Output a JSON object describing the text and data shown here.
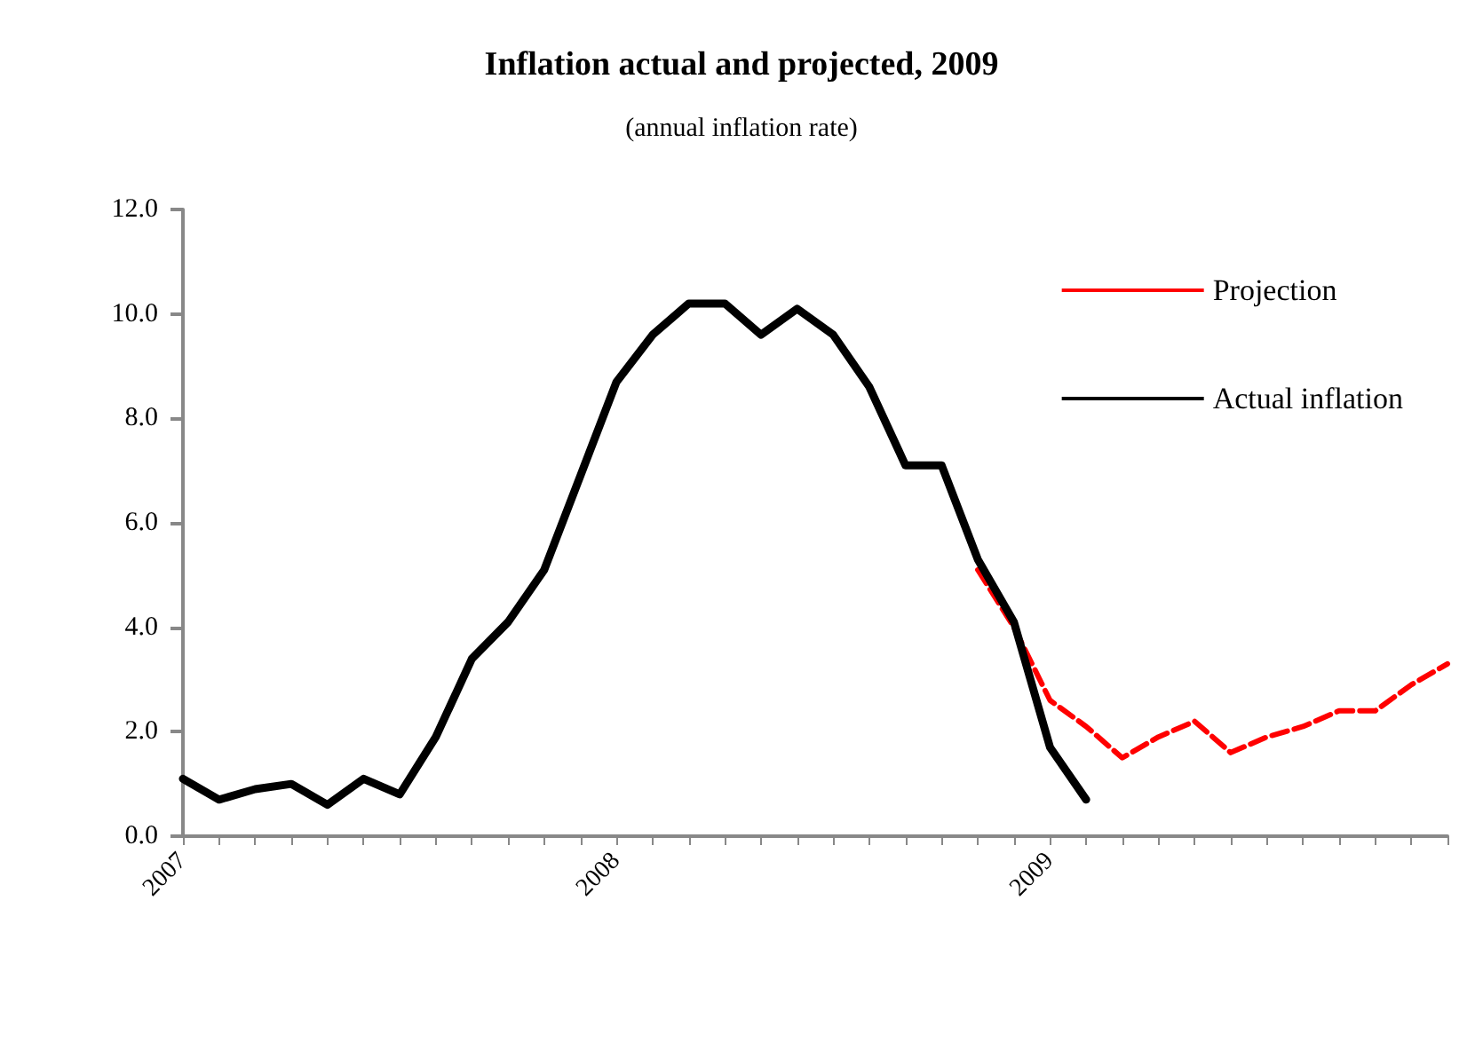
{
  "chart_data": {
    "type": "line",
    "title": "Inflation actual and projected, 2009",
    "subtitle": "(annual inflation rate)",
    "categories": [
      "2007",
      null,
      null,
      null,
      null,
      null,
      null,
      null,
      null,
      null,
      null,
      null,
      "2008",
      null,
      null,
      null,
      null,
      null,
      null,
      null,
      null,
      null,
      null,
      null,
      "2009",
      null,
      null,
      null,
      null,
      null,
      null,
      null,
      null,
      null,
      null,
      null
    ],
    "series": [
      {
        "name": "Projection",
        "color": "#ff0000",
        "line_style": "dashed",
        "values": [
          null,
          null,
          null,
          null,
          null,
          null,
          null,
          null,
          null,
          null,
          null,
          null,
          null,
          null,
          null,
          null,
          null,
          null,
          null,
          null,
          null,
          null,
          5.1,
          4.0,
          2.6,
          2.1,
          1.5,
          1.9,
          2.2,
          1.6,
          1.9,
          2.1,
          2.4,
          2.4,
          2.9,
          3.3
        ]
      },
      {
        "name": "Actual inflation",
        "color": "#000000",
        "line_style": "solid",
        "values": [
          1.1,
          0.7,
          0.9,
          1.0,
          0.6,
          1.1,
          0.8,
          1.9,
          3.4,
          4.1,
          5.1,
          6.9,
          8.7,
          9.6,
          10.2,
          10.2,
          9.6,
          10.1,
          9.6,
          8.6,
          7.1,
          7.1,
          5.3,
          4.1,
          1.7,
          0.7,
          null,
          null,
          null,
          null,
          null,
          null,
          null,
          null,
          null,
          null
        ]
      }
    ],
    "ylim": [
      0,
      12
    ],
    "yticks": [
      {
        "value": 0,
        "label": "0.0"
      },
      {
        "value": 2,
        "label": "2.0"
      },
      {
        "value": 4,
        "label": "4.0"
      },
      {
        "value": 6,
        "label": "6.0"
      },
      {
        "value": 8,
        "label": "8.0"
      },
      {
        "value": 10,
        "label": "10.0"
      },
      {
        "value": 12,
        "label": "12.0"
      }
    ],
    "grid": false,
    "legend": "top right",
    "marker": "none"
  }
}
